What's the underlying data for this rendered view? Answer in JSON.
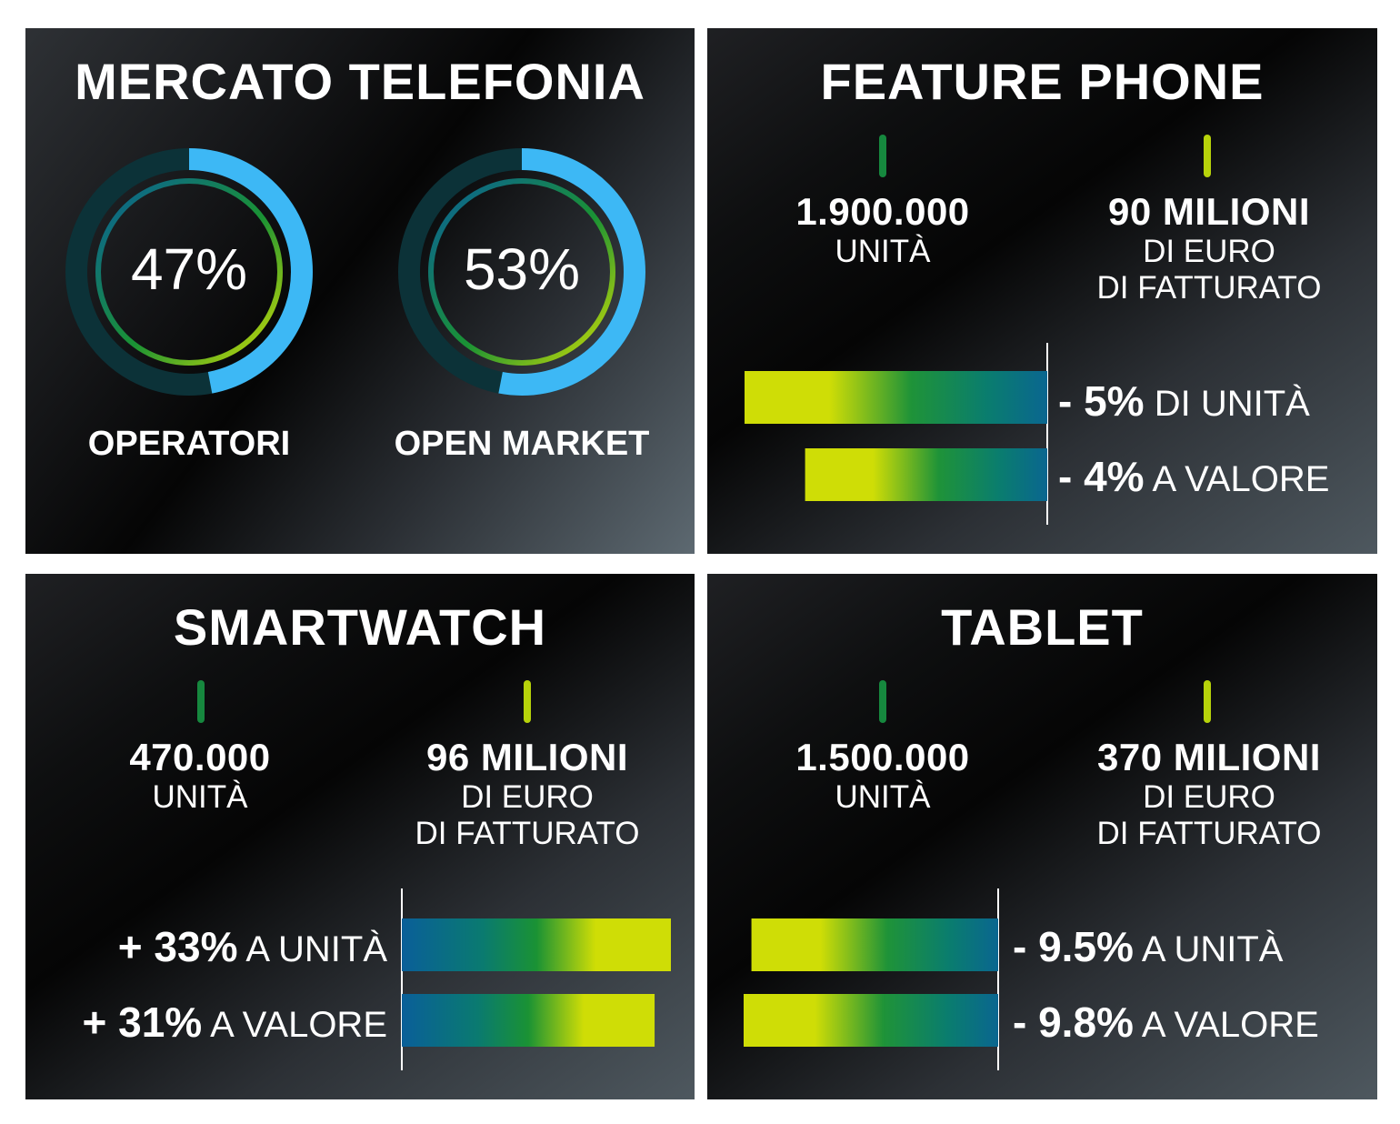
{
  "colors": {
    "ring_blue": "#3db8f5",
    "ring_track": "#0c3238",
    "teal": "#0a5f86",
    "green": "#1a9234",
    "lime": "#cfdd06"
  },
  "mercato": {
    "title": "MERCATO TELEFONIA",
    "operatori": {
      "pct": 47,
      "label": "47%",
      "caption": "OPERATORI"
    },
    "open_market": {
      "pct": 53,
      "label": "53%",
      "caption": "OPEN MARKET"
    }
  },
  "feature_phone": {
    "title": "FEATURE PHONE",
    "units_value": "1.900.000",
    "units_label": "UNITÀ",
    "revenue_value": "90 MILIONI",
    "revenue_line1": "DI EURO",
    "revenue_line2": "DI FATTURATO",
    "row1_value": "- 5%",
    "row1_text": "DI UNITÀ",
    "row2_value": "- 4%",
    "row2_text": "A VALORE"
  },
  "smartwatch": {
    "title": "SMARTWATCH",
    "units_value": "470.000",
    "units_label": "UNITÀ",
    "revenue_value": "96 MILIONI",
    "revenue_line1": "DI EURO",
    "revenue_line2": "DI FATTURATO",
    "row1_value": "+ 33%",
    "row1_text": "A UNITÀ",
    "row2_value": "+ 31%",
    "row2_text": "A VALORE"
  },
  "tablet": {
    "title": "TABLET",
    "units_value": "1.500.000",
    "units_label": "UNITÀ",
    "revenue_value": "370 MILIONI",
    "revenue_line1": "DI EURO",
    "revenue_line2": "DI FATTURATO",
    "row1_value": "- 9.5%",
    "row1_text": "A UNITÀ",
    "row2_value": "- 9.8%",
    "row2_text": "A VALORE"
  },
  "chart_data": [
    {
      "type": "pie",
      "title": "MERCATO TELEFONIA",
      "categories": [
        "OPERATORI",
        "OPEN MARKET"
      ],
      "values": [
        47,
        53
      ]
    },
    {
      "type": "bar",
      "title": "FEATURE PHONE",
      "categories": [
        "DI UNITÀ",
        "A VALORE"
      ],
      "values": [
        -5,
        -4
      ]
    },
    {
      "type": "bar",
      "title": "SMARTWATCH",
      "categories": [
        "A UNITÀ",
        "A VALORE"
      ],
      "values": [
        33,
        31
      ]
    },
    {
      "type": "bar",
      "title": "TABLET",
      "categories": [
        "A UNITÀ",
        "A VALORE"
      ],
      "values": [
        -9.5,
        -9.8
      ]
    }
  ]
}
